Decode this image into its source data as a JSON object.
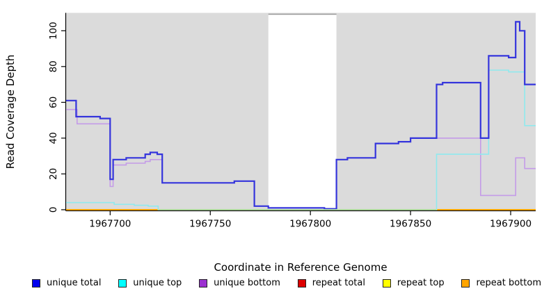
{
  "figure": {
    "xlabel": "Coordinate in Reference Genome",
    "ylabel": "Read Coverage Depth"
  },
  "chart_data": {
    "type": "line",
    "step": true,
    "title": "",
    "xlabel": "Coordinate in Reference Genome",
    "ylabel": "Read Coverage Depth",
    "xlim": [
      1967678,
      1967912.5
    ],
    "ylim": [
      0,
      110
    ],
    "x_ticks": [
      1967700,
      1967750,
      1967800,
      1967850,
      1967900
    ],
    "y_ticks": [
      0,
      20,
      40,
      60,
      80,
      100
    ],
    "grid": false,
    "legend_position": "bottom",
    "plot_bg": "#DBDBDB",
    "gap_region": {
      "x_start": 1967779,
      "x_end": 1967813,
      "fill": "#FFFFFF",
      "top_border": "#999999"
    },
    "zero_overlap_segment": {
      "x_start": 1967724,
      "x_end": 1967863,
      "color": "#A6D79E",
      "note": "unique top / repeat top overlap at depth 0 renders pale green"
    },
    "series": [
      {
        "name": "repeat total",
        "legend_color": "#DD0000",
        "line_color": "#DD0000",
        "width": 1,
        "points": [
          [
            1967678,
            0
          ]
        ]
      },
      {
        "name": "repeat top",
        "legend_color": "#FFFF00",
        "line_color": "#FFFF00",
        "width": 1,
        "points": [
          [
            1967678,
            0
          ]
        ]
      },
      {
        "name": "repeat bottom",
        "legend_color": "#FFA500",
        "line_color": "#FFA500",
        "width": 2,
        "points": [
          [
            1967678,
            0
          ]
        ]
      },
      {
        "name": "unique bottom",
        "legend_color": "#9B30D0",
        "line_color": "#C49BE8",
        "width": 1.6,
        "points": [
          [
            1967678,
            56
          ],
          [
            1967683.5,
            48
          ],
          [
            1967700,
            13
          ],
          [
            1967701.5,
            25
          ],
          [
            1967708,
            26
          ],
          [
            1967717.5,
            27
          ],
          [
            1967720,
            28
          ],
          [
            1967726,
            15
          ],
          [
            1967762,
            16
          ],
          [
            1967772,
            2
          ],
          [
            1967779,
            1
          ],
          [
            1967807,
            0.5
          ],
          [
            1967813,
            28
          ],
          [
            1967818.5,
            29
          ],
          [
            1967832.5,
            37
          ],
          [
            1967844,
            38
          ],
          [
            1967850,
            40
          ],
          [
            1967885,
            8
          ],
          [
            1967902.5,
            29
          ],
          [
            1967907,
            23
          ]
        ]
      },
      {
        "name": "unique top",
        "legend_color": "#00FFFF",
        "line_color": "#8FE9EE",
        "width": 1.6,
        "points": [
          [
            1967678,
            4
          ],
          [
            1967702,
            3
          ],
          [
            1967712,
            2.5
          ],
          [
            1967719,
            2
          ],
          [
            1967724,
            0
          ],
          [
            1967863,
            31
          ],
          [
            1967889,
            78
          ],
          [
            1967899,
            77
          ],
          [
            1967907,
            47
          ]
        ]
      },
      {
        "name": "unique total",
        "legend_color": "#0000EE",
        "line_color": "#3434DC",
        "width": 2.2,
        "points": [
          [
            1967678,
            61
          ],
          [
            1967683,
            52
          ],
          [
            1967695,
            51
          ],
          [
            1967700,
            17
          ],
          [
            1967701.5,
            28
          ],
          [
            1967708,
            29
          ],
          [
            1967717.5,
            31
          ],
          [
            1967720,
            32
          ],
          [
            1967723.5,
            31
          ],
          [
            1967726,
            15
          ],
          [
            1967762,
            16
          ],
          [
            1967772,
            2
          ],
          [
            1967779,
            1
          ],
          [
            1967807,
            0.5
          ],
          [
            1967813,
            28
          ],
          [
            1967818.5,
            29
          ],
          [
            1967832.5,
            37
          ],
          [
            1967844,
            38
          ],
          [
            1967850,
            40
          ],
          [
            1967863,
            70
          ],
          [
            1967866,
            71
          ],
          [
            1967885,
            40
          ],
          [
            1967889,
            86
          ],
          [
            1967899,
            85
          ],
          [
            1967902.5,
            105
          ],
          [
            1967904.5,
            100
          ],
          [
            1967907,
            70
          ]
        ]
      }
    ]
  },
  "legend": {
    "items": [
      {
        "label": "unique total",
        "color": "#0000EE"
      },
      {
        "label": "unique top",
        "color": "#00FFFF"
      },
      {
        "label": "unique bottom",
        "color": "#9B30D0"
      },
      {
        "label": "repeat total",
        "color": "#DD0000"
      },
      {
        "label": "repeat top",
        "color": "#FFFF00"
      },
      {
        "label": "repeat bottom",
        "color": "#FFA500"
      }
    ]
  }
}
